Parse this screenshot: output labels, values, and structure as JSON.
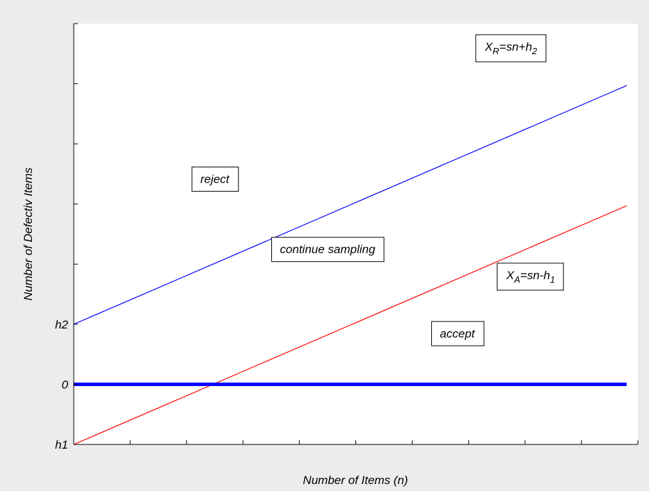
{
  "chart_data": {
    "type": "line",
    "xlabel": "Number of Items (n)",
    "ylabel": "Number of Defectiv Items",
    "xlim": [
      0,
      10
    ],
    "ylim": [
      -1,
      6
    ],
    "xticks": [
      0,
      1,
      2,
      3,
      4,
      5,
      6,
      7,
      8,
      9,
      10
    ],
    "yticks": [
      -1,
      0,
      1,
      2,
      3,
      4,
      5,
      6
    ],
    "ytick_labels": [
      {
        "value": -1,
        "label": "h1"
      },
      {
        "value": 0,
        "label": "0"
      },
      {
        "value": 1,
        "label": "h2"
      }
    ],
    "grid": false,
    "series": [
      {
        "name": "X_R=sn+h_2",
        "color": "#0000ff",
        "x": [
          0,
          9.8
        ],
        "y": [
          1,
          4.97
        ]
      },
      {
        "name": "X_A=sn-h_1",
        "color": "#ff0000",
        "x": [
          0,
          9.8
        ],
        "y": [
          -1,
          2.97
        ]
      },
      {
        "name": "",
        "color": "#0000ff",
        "bold": true,
        "x": [
          0,
          9.8
        ],
        "y": [
          0,
          0
        ]
      }
    ],
    "regions": [
      {
        "label": "reject",
        "x": 2.5,
        "y": 3.35
      },
      {
        "label": "continue sampling",
        "x": 4.5,
        "y": 2.18
      },
      {
        "label": "accept",
        "x": 6.8,
        "y": 0.78
      }
    ],
    "line_labels": [
      {
        "main": "X",
        "sub": "R",
        "rest": "=sn+h",
        "sub2": "2",
        "x": 7.75,
        "y": 5.55
      },
      {
        "main": "X",
        "sub": "A",
        "rest": "=sn-h",
        "sub2": "1",
        "x": 8.1,
        "y": 1.75
      }
    ]
  }
}
